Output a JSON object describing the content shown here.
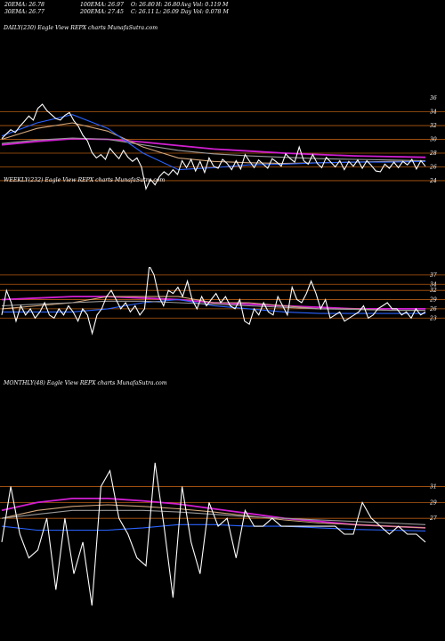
{
  "stats": {
    "ema20": "20EMA: 26.78",
    "ema100": "100EMA: 26.97",
    "open": "O: 26.80",
    "high": "H: 26.80",
    "avg_vol": "Avg Vol: 0.119 M",
    "ema30": "30EMA: 26.77",
    "ema200": "200EMA: 27.45",
    "close": "C: 26.11",
    "low": "L: 26.09",
    "day_vol": "Day Vol: 0.078 M"
  },
  "chart_data": [
    {
      "type": "line",
      "caption": "DAILY(230) Eagle  View  REPX  charts MunafaSutra.com",
      "y_ticks": [
        "36",
        "34",
        "32",
        "30",
        "28",
        "26",
        "24"
      ],
      "ylim": [
        22.7,
        37.7
      ],
      "hlines": [
        34,
        32,
        30,
        28,
        26,
        24
      ],
      "price": [
        30.1,
        30.8,
        31.4,
        31.0,
        31.9,
        32.6,
        33.4,
        32.8,
        34.5,
        35.1,
        34.2,
        33.6,
        33.0,
        32.8,
        33.5,
        33.9,
        32.7,
        31.9,
        30.6,
        29.8,
        28.1,
        27.3,
        27.8,
        27.1,
        28.7,
        27.9,
        27.2,
        28.4,
        27.4,
        26.8,
        27.3,
        26.0,
        22.8,
        24.2,
        23.4,
        24.6,
        25.3,
        24.8,
        25.6,
        24.9,
        26.9,
        25.9,
        27.1,
        25.4,
        26.8,
        25.2,
        27.3,
        26.1,
        25.8,
        27.1,
        26.5,
        25.6,
        26.9,
        25.7,
        27.8,
        26.8,
        25.9,
        27.0,
        26.4,
        25.8,
        27.2,
        26.7,
        26.1,
        27.9,
        27.2,
        26.7,
        28.9,
        26.9,
        26.4,
        27.8,
        26.5,
        25.9,
        27.4,
        26.7,
        26.0,
        26.9,
        25.6,
        26.8,
        26.1,
        27.0,
        25.8,
        26.9,
        26.2,
        25.4,
        25.3,
        26.4,
        25.8,
        26.7,
        25.9,
        26.8,
        26.3,
        27.1,
        25.7,
        26.9,
        26.1
      ],
      "series": [
        {
          "color": "#d11fd1",
          "values": [
            29.2,
            29.7,
            30.1,
            30.0,
            29.6,
            29.1,
            28.6,
            28.3,
            28.0,
            27.8,
            27.6,
            27.5,
            27.4
          ]
        },
        {
          "color": "#9a9a9a",
          "values": [
            29.4,
            29.9,
            30.2,
            30.0,
            29.2,
            28.4,
            27.9,
            27.6,
            27.4,
            27.2,
            27.1,
            27.0,
            26.9
          ]
        },
        {
          "color": "#d2a57a",
          "values": [
            30.0,
            31.6,
            32.4,
            31.2,
            28.9,
            27.3,
            26.8,
            26.6,
            26.5,
            26.6,
            26.7,
            26.8,
            26.8
          ]
        },
        {
          "color": "#2a63ff",
          "values": [
            30.5,
            32.4,
            33.6,
            31.6,
            28.0,
            25.6,
            25.9,
            26.3,
            26.4,
            26.6,
            26.7,
            26.7,
            26.8
          ]
        }
      ]
    },
    {
      "type": "line",
      "caption": "WEEKLY(232) Eagle  View  REPX  charts MunafaSutra.com",
      "y_ticks": [
        "37",
        "34",
        "32",
        "29",
        "26",
        "23"
      ],
      "ylim": [
        17,
        39
      ],
      "hlines": [
        37,
        34,
        32,
        29,
        26,
        23
      ],
      "price": [
        24,
        32,
        28,
        22,
        27,
        24,
        26,
        23,
        25,
        28,
        24,
        23,
        26,
        24,
        27,
        25,
        22,
        26,
        24,
        18,
        24,
        26,
        30,
        32,
        29,
        26,
        28,
        25,
        27,
        24,
        26,
        40,
        37,
        30,
        27,
        32,
        31,
        33,
        30,
        35,
        29,
        26,
        30,
        27,
        29,
        31,
        28,
        30,
        27,
        26,
        29,
        22,
        21,
        26,
        24,
        28,
        25,
        24,
        30,
        27,
        24,
        33,
        29,
        28,
        31,
        35,
        31,
        26,
        29,
        23,
        24,
        25,
        22,
        23,
        24,
        25,
        27,
        23,
        24,
        26,
        27,
        28,
        26,
        26,
        24,
        25,
        23,
        26,
        24,
        25
      ],
      "series": [
        {
          "color": "#d11fd1",
          "values": [
            29,
            29.5,
            30,
            30,
            29.5,
            29,
            28,
            27.5,
            27,
            26.5,
            26,
            26,
            26
          ]
        },
        {
          "color": "#d2a57a",
          "values": [
            26,
            27,
            28,
            30,
            30,
            30,
            28,
            28,
            27,
            26,
            26,
            25.5,
            25.5
          ]
        },
        {
          "color": "#2a63ff",
          "values": [
            25,
            25,
            25,
            26,
            28,
            29,
            27,
            26,
            25,
            24.5,
            24.5,
            24.5,
            24.5
          ]
        },
        {
          "color": "#9a9a9a",
          "values": [
            27,
            27.5,
            28,
            28.5,
            28.5,
            28,
            27.5,
            27,
            26.5,
            26,
            25.8,
            25.5,
            25.5
          ]
        }
      ]
    },
    {
      "type": "line",
      "caption": "MONTHLY(48) Eagle  View  REPX  charts MunafaSutra.com",
      "y_ticks": [
        "31",
        "29",
        "27"
      ],
      "ylim": [
        14,
        36
      ],
      "hlines": [
        31,
        29,
        27
      ],
      "price": [
        24,
        31,
        25,
        22,
        23,
        27,
        18,
        27,
        20,
        24,
        16,
        31,
        33,
        27,
        25,
        22,
        21,
        34,
        26,
        17,
        31,
        24,
        20,
        29,
        26,
        27,
        22,
        28,
        26,
        26,
        27,
        26,
        26,
        26,
        26,
        26,
        26,
        26,
        25,
        25,
        29,
        27,
        26,
        25,
        26,
        25,
        25,
        24
      ],
      "series": [
        {
          "color": "#d11fd1",
          "values": [
            28,
            29,
            29.5,
            29.5,
            29.2,
            28.8,
            28.2,
            27.6,
            27,
            26.6,
            26.2,
            26,
            25.8
          ]
        },
        {
          "color": "#d2a57a",
          "values": [
            27,
            28,
            28.5,
            28.7,
            28.5,
            28.2,
            27.8,
            27.3,
            26.8,
            26.4,
            26.2,
            26,
            25.8
          ]
        },
        {
          "color": "#2a63ff",
          "values": [
            26,
            25.5,
            25.5,
            25.5,
            25.8,
            26.2,
            26.2,
            26,
            26,
            25.8,
            25.6,
            25.5,
            25.4
          ]
        },
        {
          "color": "#9a9a9a",
          "values": [
            27,
            27.5,
            28,
            28,
            28,
            27.8,
            27.5,
            27.2,
            27,
            26.8,
            26.6,
            26.4,
            26.2
          ]
        }
      ]
    }
  ]
}
